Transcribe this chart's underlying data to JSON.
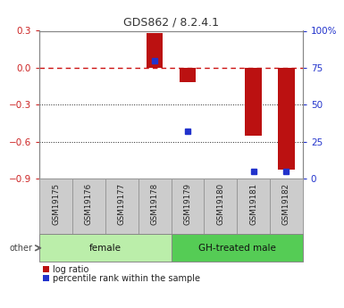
{
  "title": "GDS862 / 8.2.4.1",
  "samples": [
    "GSM19175",
    "GSM19176",
    "GSM19177",
    "GSM19178",
    "GSM19179",
    "GSM19180",
    "GSM19181",
    "GSM19182"
  ],
  "log_ratio": [
    0.0,
    0.0,
    0.0,
    0.28,
    -0.12,
    0.0,
    -0.55,
    -0.83
  ],
  "percentile_rank": [
    null,
    null,
    null,
    80,
    32,
    null,
    5,
    5
  ],
  "groups": [
    {
      "label": "female",
      "start": 0,
      "end": 4,
      "color": "#bbeeaa"
    },
    {
      "label": "GH-treated male",
      "start": 4,
      "end": 8,
      "color": "#55cc55"
    }
  ],
  "ylim_left": [
    -0.9,
    0.3
  ],
  "ylim_right": [
    0,
    100
  ],
  "yticks_left": [
    0.3,
    0.0,
    -0.3,
    -0.6,
    -0.9
  ],
  "yticks_right": [
    100,
    75,
    50,
    25,
    0
  ],
  "bar_color": "#bb1111",
  "dot_color": "#2233cc",
  "zero_line_color": "#cc1111",
  "grid_line_color": "#222222",
  "bg_color": "#ffffff",
  "tick_label_color_left": "#cc2222",
  "tick_label_color_right": "#2233cc",
  "sample_box_color": "#cccccc",
  "sample_box_edge": "#999999",
  "legend_log_ratio": "log ratio",
  "legend_percentile": "percentile rank within the sample"
}
